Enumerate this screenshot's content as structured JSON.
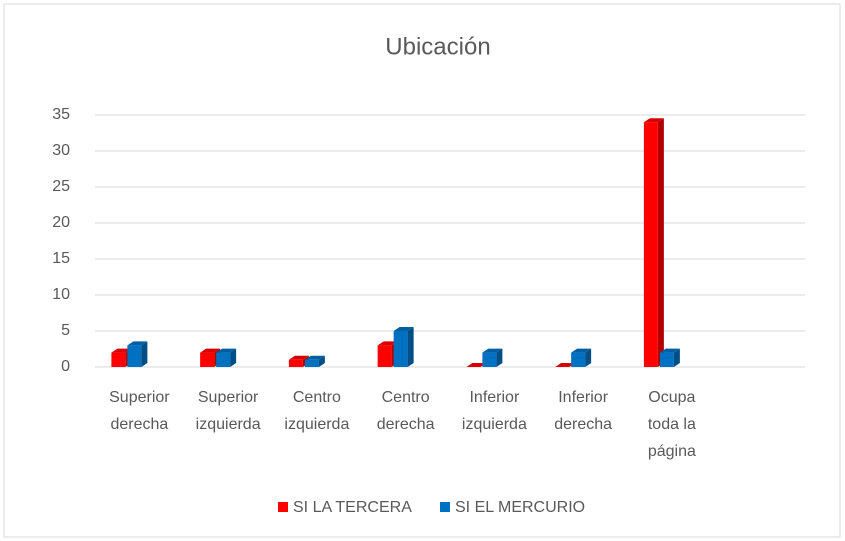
{
  "chart_data": {
    "type": "bar3d",
    "title": "Ubicación",
    "categories": [
      [
        "Superior",
        "derecha"
      ],
      [
        "Superior",
        "izquierda"
      ],
      [
        "Centro",
        "izquierda"
      ],
      [
        "Centro",
        "derecha"
      ],
      [
        "Inferior",
        "izquierda"
      ],
      [
        "Inferior",
        "derecha"
      ],
      [
        "Ocupa",
        "toda la",
        "página"
      ],
      null
    ],
    "series": [
      {
        "name": "SI LA TERCERA",
        "color": "#ff0000",
        "values": [
          2,
          2,
          1,
          3,
          0,
          0,
          34,
          null
        ]
      },
      {
        "name": "SI EL MERCURIO",
        "color": "#0070c0",
        "values": [
          3,
          2,
          1,
          5,
          2,
          2,
          2,
          null
        ]
      }
    ],
    "ylim": [
      0,
      35
    ],
    "yticks": [
      0,
      5,
      10,
      15,
      20,
      25,
      30,
      35
    ],
    "grid": true,
    "legend": "bottom"
  }
}
